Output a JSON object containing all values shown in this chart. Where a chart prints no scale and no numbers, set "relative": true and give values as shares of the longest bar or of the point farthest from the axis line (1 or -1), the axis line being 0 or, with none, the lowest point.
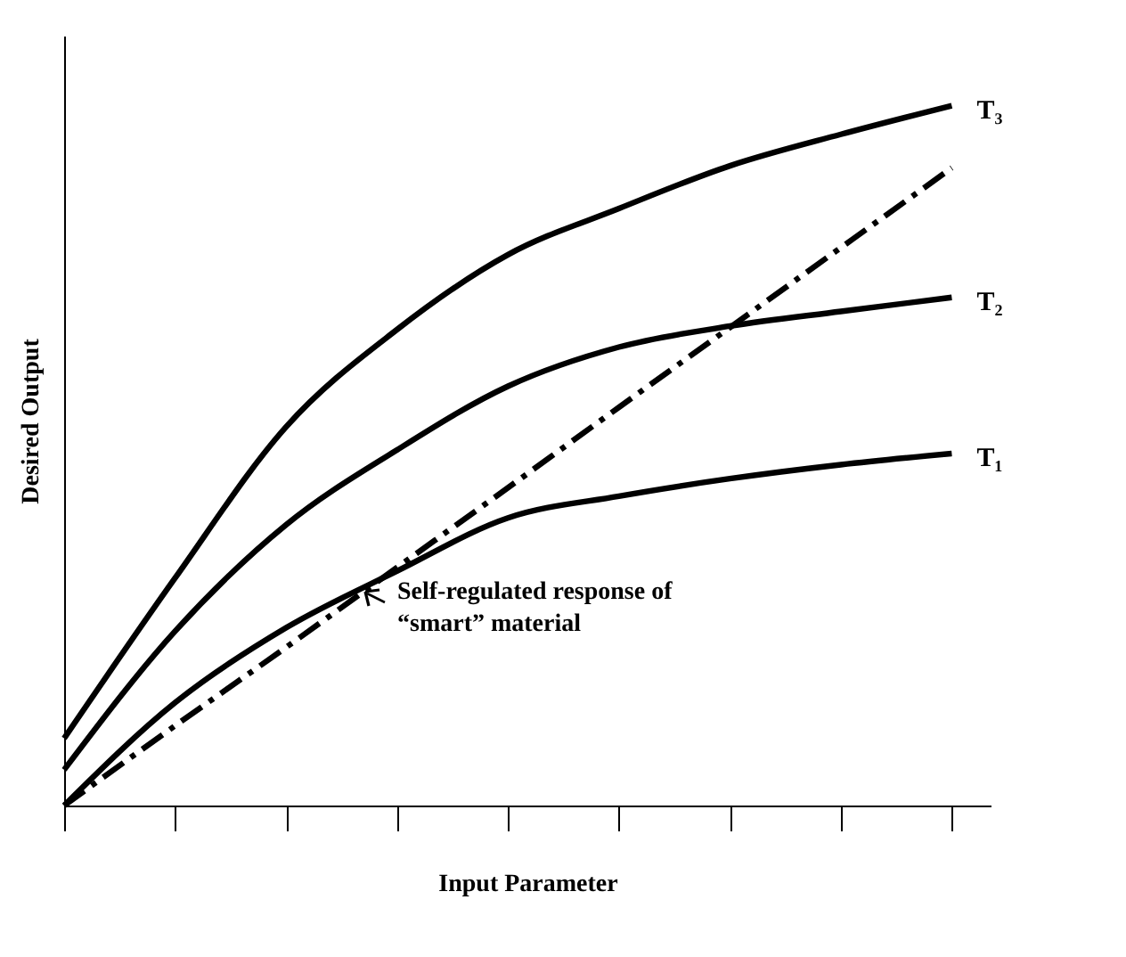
{
  "chart_data": {
    "type": "line",
    "relative": true,
    "xlabel": "Input Parameter",
    "ylabel": "Desired Output",
    "categories": [
      null,
      null,
      null,
      null,
      null,
      null,
      null,
      null,
      null
    ],
    "series": [
      {
        "name": "T₃",
        "color": "#000000",
        "values": [
          0.096,
          0.325,
          0.541,
          0.68,
          0.787,
          0.853,
          0.914,
          0.959,
          1.0
        ]
      },
      {
        "name": "T₂",
        "color": "#000000",
        "values": [
          0.051,
          0.249,
          0.401,
          0.508,
          0.599,
          0.655,
          0.685,
          0.706,
          0.726
        ]
      },
      {
        "name": "T₁",
        "color": "#000000",
        "values": [
          0,
          0.147,
          0.254,
          0.335,
          0.411,
          0.442,
          0.467,
          0.487,
          0.503
        ]
      },
      {
        "color": "#000000",
        "line_style": "dashed",
        "values": [
          0,
          0.114,
          0.226,
          0.34,
          0.454,
          0.569,
          0.683,
          0.797,
          0.911
        ]
      }
    ],
    "annotations": [
      "Self-regulated response of\n“smart” material"
    ],
    "grid": false,
    "marker": "none",
    "line_style": "solid"
  }
}
